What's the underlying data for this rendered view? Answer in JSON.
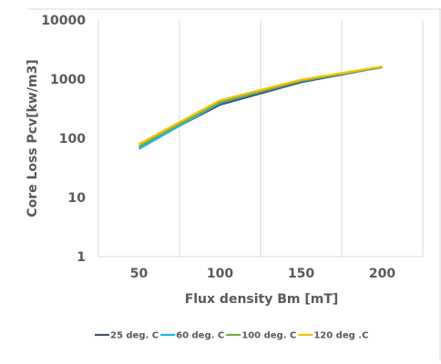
{
  "chart_data": {
    "type": "line",
    "title": "",
    "xlabel": "Flux density Bm [mT]",
    "ylabel": "Core Loss Pcv[kw/m3]",
    "x": [
      50,
      100,
      150,
      200
    ],
    "xlim": [
      25,
      225
    ],
    "x_ticks": [
      "50",
      "100",
      "150",
      "200"
    ],
    "ylim": [
      1,
      10000
    ],
    "y_scale": "log",
    "y_ticks": [
      "1",
      "10",
      "100",
      "1000",
      "10000"
    ],
    "grid": "vertical",
    "legend_position": "bottom",
    "series": [
      {
        "name": "25 deg. C",
        "color": "#44546a",
        "values": [
          72,
          370,
          890,
          1600
        ]
      },
      {
        "name": "60 deg. C",
        "color": "#1fb5ea",
        "values": [
          66,
          400,
          930,
          1580
        ]
      },
      {
        "name": "100 deg. C",
        "color": "#70ad47",
        "values": [
          73,
          410,
          940,
          1590
        ]
      },
      {
        "name": "120 deg .C",
        "color": "#ffc000",
        "values": [
          80,
          440,
          980,
          1650
        ]
      }
    ]
  }
}
